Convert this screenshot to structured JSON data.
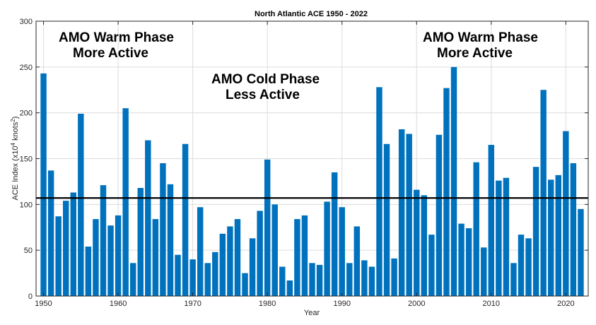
{
  "chart_data": {
    "type": "bar",
    "title": "North Atlantic ACE 1950 - 2022",
    "xlabel": "Year",
    "ylabel_main": "ACE Index (x10",
    "ylabel_sup1": "4",
    "ylabel_mid": " knots",
    "ylabel_sup2": "2",
    "ylabel_end": ")",
    "xlim": [
      1949,
      2023
    ],
    "ylim": [
      0,
      300
    ],
    "x_ticks": [
      1950,
      1960,
      1970,
      1980,
      1990,
      2000,
      2010,
      2020
    ],
    "y_ticks": [
      0,
      50,
      100,
      150,
      200,
      250,
      300
    ],
    "grid": true,
    "bar_color": "#0072BD",
    "reference_line": {
      "value": 107,
      "color": "#000000"
    },
    "x": [
      1950,
      1951,
      1952,
      1953,
      1954,
      1955,
      1956,
      1957,
      1958,
      1959,
      1960,
      1961,
      1962,
      1963,
      1964,
      1965,
      1966,
      1967,
      1968,
      1969,
      1970,
      1971,
      1972,
      1973,
      1974,
      1975,
      1976,
      1977,
      1978,
      1979,
      1980,
      1981,
      1982,
      1983,
      1984,
      1985,
      1986,
      1987,
      1988,
      1989,
      1990,
      1991,
      1992,
      1993,
      1994,
      1995,
      1996,
      1997,
      1998,
      1999,
      2000,
      2001,
      2002,
      2003,
      2004,
      2005,
      2006,
      2007,
      2008,
      2009,
      2010,
      2011,
      2012,
      2013,
      2014,
      2015,
      2016,
      2017,
      2018,
      2019,
      2020,
      2021,
      2022
    ],
    "values": [
      243,
      137,
      87,
      104,
      113,
      199,
      54,
      84,
      121,
      77,
      88,
      205,
      36,
      118,
      170,
      84,
      145,
      122,
      45,
      166,
      40,
      97,
      36,
      48,
      68,
      76,
      84,
      25,
      63,
      93,
      149,
      100,
      32,
      17,
      84,
      88,
      36,
      34,
      103,
      135,
      97,
      36,
      76,
      39,
      32,
      228,
      166,
      41,
      182,
      177,
      116,
      110,
      67,
      176,
      227,
      250,
      79,
      74,
      146,
      53,
      165,
      126,
      129,
      36,
      67,
      63,
      141,
      225,
      127,
      132,
      180,
      145,
      95
    ],
    "annotations": [
      {
        "line1": "AMO Warm Phase",
        "line2": "More Active"
      },
      {
        "line1": "AMO Cold Phase",
        "line2": "Less Active"
      },
      {
        "line1": "AMO Warm Phase",
        "line2": "More Active"
      }
    ]
  }
}
